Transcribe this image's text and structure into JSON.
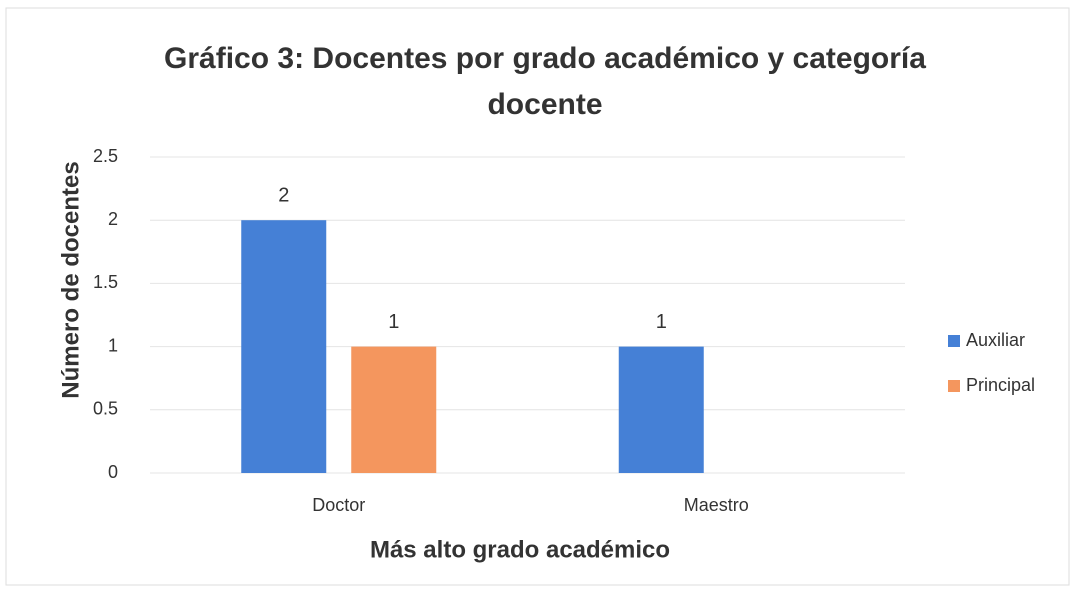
{
  "chart_data": {
    "type": "bar",
    "title": "Gráfico 3: Docentes por grado académico y categoría docente",
    "x_label": "Más alto grado académico",
    "y_label": "Número de docentes",
    "categories": [
      "Doctor",
      "Maestro"
    ],
    "series": [
      {
        "name": "Auxiliar",
        "color": "#4580d6",
        "values": [
          2,
          1
        ]
      },
      {
        "name": "Principal",
        "color": "#f4965e",
        "values": [
          1,
          null
        ]
      }
    ],
    "ylim": [
      0,
      2.5
    ],
    "yticks": [
      0,
      0.5,
      1,
      1.5,
      2,
      2.5
    ],
    "grid": true,
    "legend": "right"
  }
}
